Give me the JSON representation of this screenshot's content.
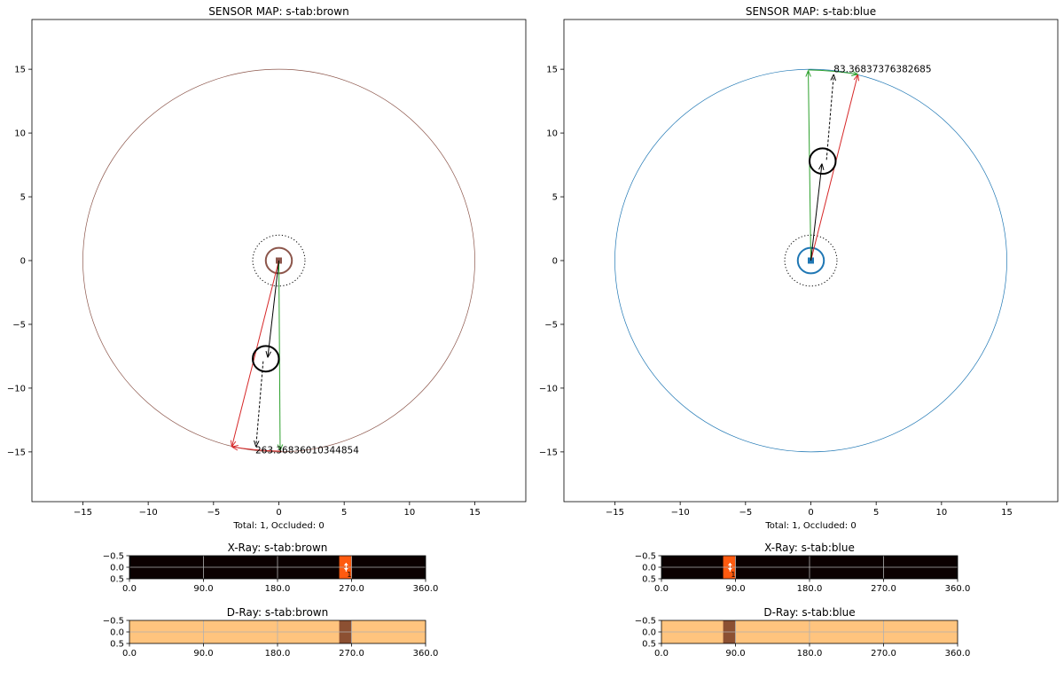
{
  "chart_data": [
    {
      "type": "scatter",
      "title": "SENSOR MAP: s-tab:brown",
      "xlabel": "Total: 1, Occluded: 0",
      "ylabel": "",
      "xlim": [
        -18.9,
        18.9
      ],
      "ylim": [
        -18.9,
        18.9
      ],
      "xticks": [
        -15,
        -10,
        -5,
        0,
        5,
        10,
        15
      ],
      "yticks": [
        -15,
        -10,
        -5,
        0,
        5,
        10,
        15
      ],
      "sensor": {
        "x": 0,
        "y": 0,
        "range": 15,
        "color": "#8c564b"
      },
      "target": {
        "x": -1.0,
        "y": -7.7
      },
      "bearing_label": "263.36836010344854",
      "bearing_label_pos": {
        "x": -1.8,
        "y": -14.85
      },
      "rays": [
        {
          "from": [
            0,
            0
          ],
          "to": [
            -3.6,
            -14.6
          ],
          "color": "#d62728",
          "style": "solid"
        },
        {
          "from": [
            0,
            0
          ],
          "to": [
            0.1,
            -14.9
          ],
          "color": "#2ca02c",
          "style": "solid"
        },
        {
          "from": [
            0,
            0
          ],
          "to": [
            -0.85,
            -7.6
          ],
          "color": "#000000",
          "style": "solid"
        },
        {
          "from": [
            -1.2,
            -7.9
          ],
          "to": [
            -1.75,
            -14.6
          ],
          "color": "#000000",
          "style": "dashed"
        }
      ],
      "arc": {
        "from": [
          0.2,
          -14.95
        ],
        "to": [
          -3.6,
          -14.6
        ],
        "color": "#d62728"
      }
    },
    {
      "type": "scatter",
      "title": "SENSOR MAP: s-tab:blue",
      "xlabel": "Total: 1, Occluded: 0",
      "ylabel": "",
      "xlim": [
        -18.9,
        18.9
      ],
      "ylim": [
        -18.9,
        18.9
      ],
      "xticks": [
        -15,
        -10,
        -5,
        0,
        5,
        10,
        15
      ],
      "yticks": [
        -15,
        -10,
        -5,
        0,
        5,
        10,
        15
      ],
      "sensor": {
        "x": 0,
        "y": 0,
        "range": 15,
        "color": "#1f77b4"
      },
      "target": {
        "x": 0.9,
        "y": 7.8
      },
      "bearing_label": "83.36837376382685",
      "bearing_label_pos": {
        "x": 1.75,
        "y": 15.05
      },
      "rays": [
        {
          "from": [
            0,
            0
          ],
          "to": [
            3.6,
            14.6
          ],
          "color": "#d62728",
          "style": "solid"
        },
        {
          "from": [
            0,
            0
          ],
          "to": [
            -0.2,
            14.9
          ],
          "color": "#2ca02c",
          "style": "solid"
        },
        {
          "from": [
            0,
            0
          ],
          "to": [
            0.85,
            7.6
          ],
          "color": "#000000",
          "style": "solid"
        },
        {
          "from": [
            1.2,
            7.9
          ],
          "to": [
            1.75,
            14.6
          ],
          "color": "#000000",
          "style": "dashed"
        }
      ],
      "arc": {
        "from": [
          -0.2,
          14.95
        ],
        "to": [
          3.6,
          14.6
        ],
        "color": "#2ca02c"
      }
    },
    {
      "type": "heatmap",
      "title": "X-Ray: s-tab:brown",
      "xlim": [
        0,
        360
      ],
      "ylim": [
        0.5,
        -0.5
      ],
      "xticks": [
        "0.0",
        "90.0",
        "180.0",
        "270.0",
        "360.0"
      ],
      "yticks": [
        "−0.5",
        "0.0",
        "0.5"
      ],
      "background": "#0b0000",
      "bins": [
        {
          "start": 255,
          "end": 270,
          "color": "#ff5a0f"
        }
      ],
      "marker_x": 263.37,
      "count_label": "1"
    },
    {
      "type": "heatmap",
      "title": "D-Ray: s-tab:brown",
      "xlim": [
        0,
        360
      ],
      "ylim": [
        0.5,
        -0.5
      ],
      "xticks": [
        "0.0",
        "90.0",
        "180.0",
        "270.0",
        "360.0"
      ],
      "yticks": [
        "−0.5",
        "0.0",
        "0.5"
      ],
      "background": "#ffc47e",
      "bins": [
        {
          "start": 255,
          "end": 270,
          "color": "#8c5032"
        }
      ]
    },
    {
      "type": "heatmap",
      "title": "X-Ray: s-tab:blue",
      "xlim": [
        0,
        360
      ],
      "ylim": [
        0.5,
        -0.5
      ],
      "xticks": [
        "0.0",
        "90.0",
        "180.0",
        "270.0",
        "360.0"
      ],
      "yticks": [
        "−0.5",
        "0.0",
        "0.5"
      ],
      "background": "#0b0000",
      "bins": [
        {
          "start": 75,
          "end": 90,
          "color": "#ff5a0f"
        }
      ],
      "marker_x": 83.37,
      "count_label": "1"
    },
    {
      "type": "heatmap",
      "title": "D-Ray: s-tab:blue",
      "xlim": [
        0,
        360
      ],
      "ylim": [
        0.5,
        -0.5
      ],
      "xticks": [
        "0.0",
        "90.0",
        "180.0",
        "270.0",
        "360.0"
      ],
      "yticks": [
        "−0.5",
        "0.0",
        "0.5"
      ],
      "background": "#ffc47e",
      "bins": [
        {
          "start": 75,
          "end": 90,
          "color": "#8c5032"
        }
      ]
    }
  ]
}
